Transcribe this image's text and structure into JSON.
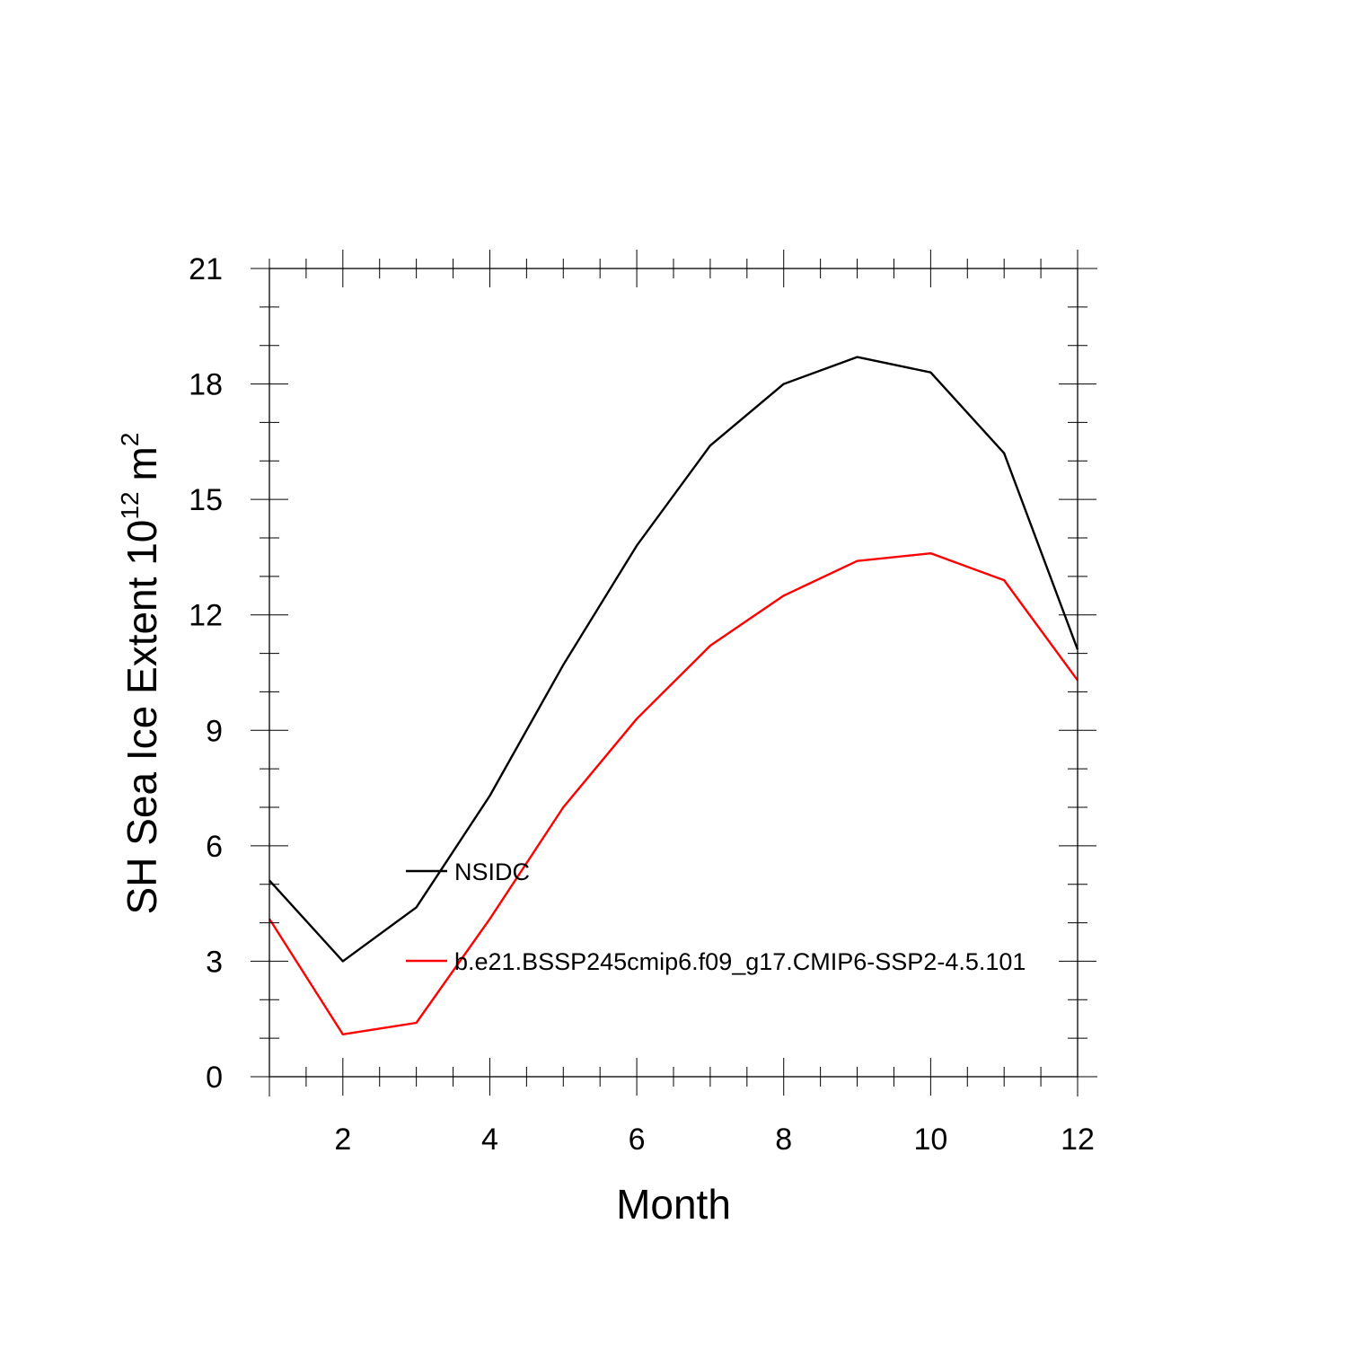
{
  "chart_data": {
    "type": "line",
    "xlabel": "Month",
    "ylabel": {
      "text": "SH Sea Ice Extent 10",
      "exponent1": "12",
      "unit": "m",
      "exponent2": "2"
    },
    "xlim": [
      1,
      12
    ],
    "ylim": [
      0,
      21
    ],
    "x_ticks_major": [
      2,
      4,
      6,
      8,
      10,
      12
    ],
    "x_ticks_minor_step": 0.5,
    "y_ticks_major": [
      0,
      3,
      6,
      9,
      12,
      15,
      18,
      21
    ],
    "y_ticks_minor_step": 1,
    "grid": false,
    "legend_position": "inside-lower-left",
    "x": [
      1,
      2,
      3,
      4,
      5,
      6,
      7,
      8,
      9,
      10,
      11,
      12
    ],
    "series": [
      {
        "name": "NSIDC",
        "color": "#000000",
        "values": [
          5.1,
          3.0,
          4.4,
          7.3,
          10.7,
          13.8,
          16.4,
          18.0,
          18.7,
          18.3,
          16.2,
          11.1
        ]
      },
      {
        "name": "b.e21.BSSP245cmip6.f09_g17.CMIP6-SSP2-4.5.101",
        "color": "#ff0000",
        "values": [
          4.1,
          1.1,
          1.4,
          4.1,
          7.0,
          9.3,
          11.2,
          12.5,
          13.4,
          13.6,
          12.9,
          10.3
        ]
      }
    ]
  }
}
